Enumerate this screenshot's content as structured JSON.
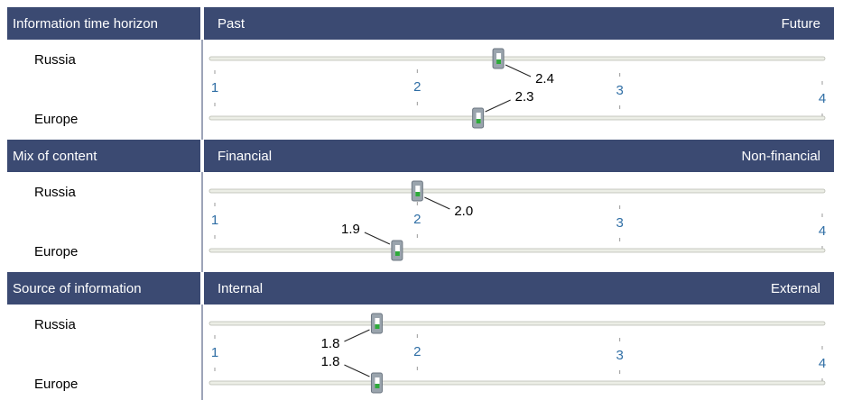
{
  "chart_data": [
    {
      "type": "slider",
      "title": "Information time horizon",
      "left_label": "Past",
      "right_label": "Future",
      "categories": [
        "Russia",
        "Europe"
      ],
      "values": [
        2.4,
        2.3
      ],
      "value_labels": [
        "2.4",
        "2.3"
      ],
      "xlim": [
        1,
        4
      ],
      "xticks": [
        1,
        2,
        3,
        4
      ],
      "header_color": "#3b4a72"
    },
    {
      "type": "slider",
      "title": "Mix of content",
      "left_label": "Financial",
      "right_label": "Non-financial",
      "categories": [
        "Russia",
        "Europe"
      ],
      "values": [
        2.0,
        1.9
      ],
      "value_labels": [
        "2.0",
        "1.9"
      ],
      "xlim": [
        1,
        4
      ],
      "xticks": [
        1,
        2,
        3,
        4
      ],
      "header_color": "#3b4a72"
    },
    {
      "type": "slider",
      "title": "Source of information",
      "left_label": "Internal",
      "right_label": "External",
      "categories": [
        "Russia",
        "Europe"
      ],
      "values": [
        1.8,
        1.8
      ],
      "value_labels": [
        "1.8",
        "1.8"
      ],
      "xlim": [
        1,
        4
      ],
      "xticks": [
        1,
        2,
        3,
        4
      ],
      "header_color": "#3b4a72"
    }
  ]
}
